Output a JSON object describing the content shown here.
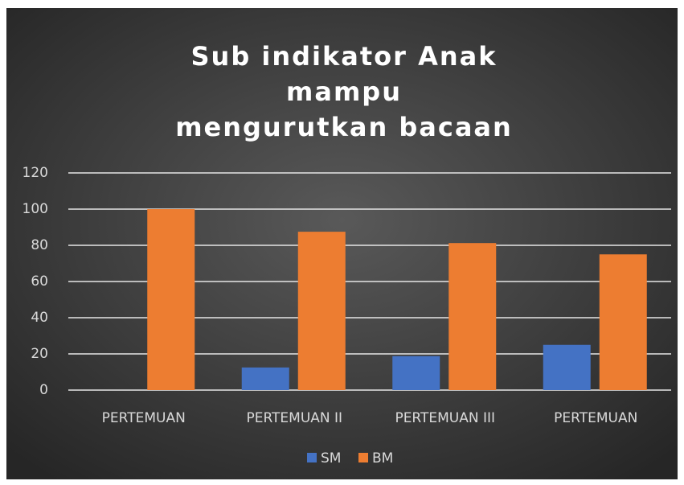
{
  "chart_data": {
    "type": "bar",
    "title": [
      "Sub  indikator Anak",
      "mampu",
      "mengurutkan bacaan"
    ],
    "categories": [
      "PERTEMUAN",
      "PERTEMUAN II",
      "PERTEMUAN III",
      "PERTEMUAN"
    ],
    "series": [
      {
        "name": "SM",
        "color": "#4472c4",
        "values": [
          0,
          12.5,
          18.75,
          25
        ]
      },
      {
        "name": "BM",
        "color": "#ed7d31",
        "values": [
          100,
          87.5,
          81.25,
          75
        ]
      }
    ],
    "ylim": [
      0,
      120
    ],
    "yticks": [
      0,
      20,
      40,
      60,
      80,
      100,
      120
    ],
    "grid": true,
    "legend": "bottom"
  }
}
